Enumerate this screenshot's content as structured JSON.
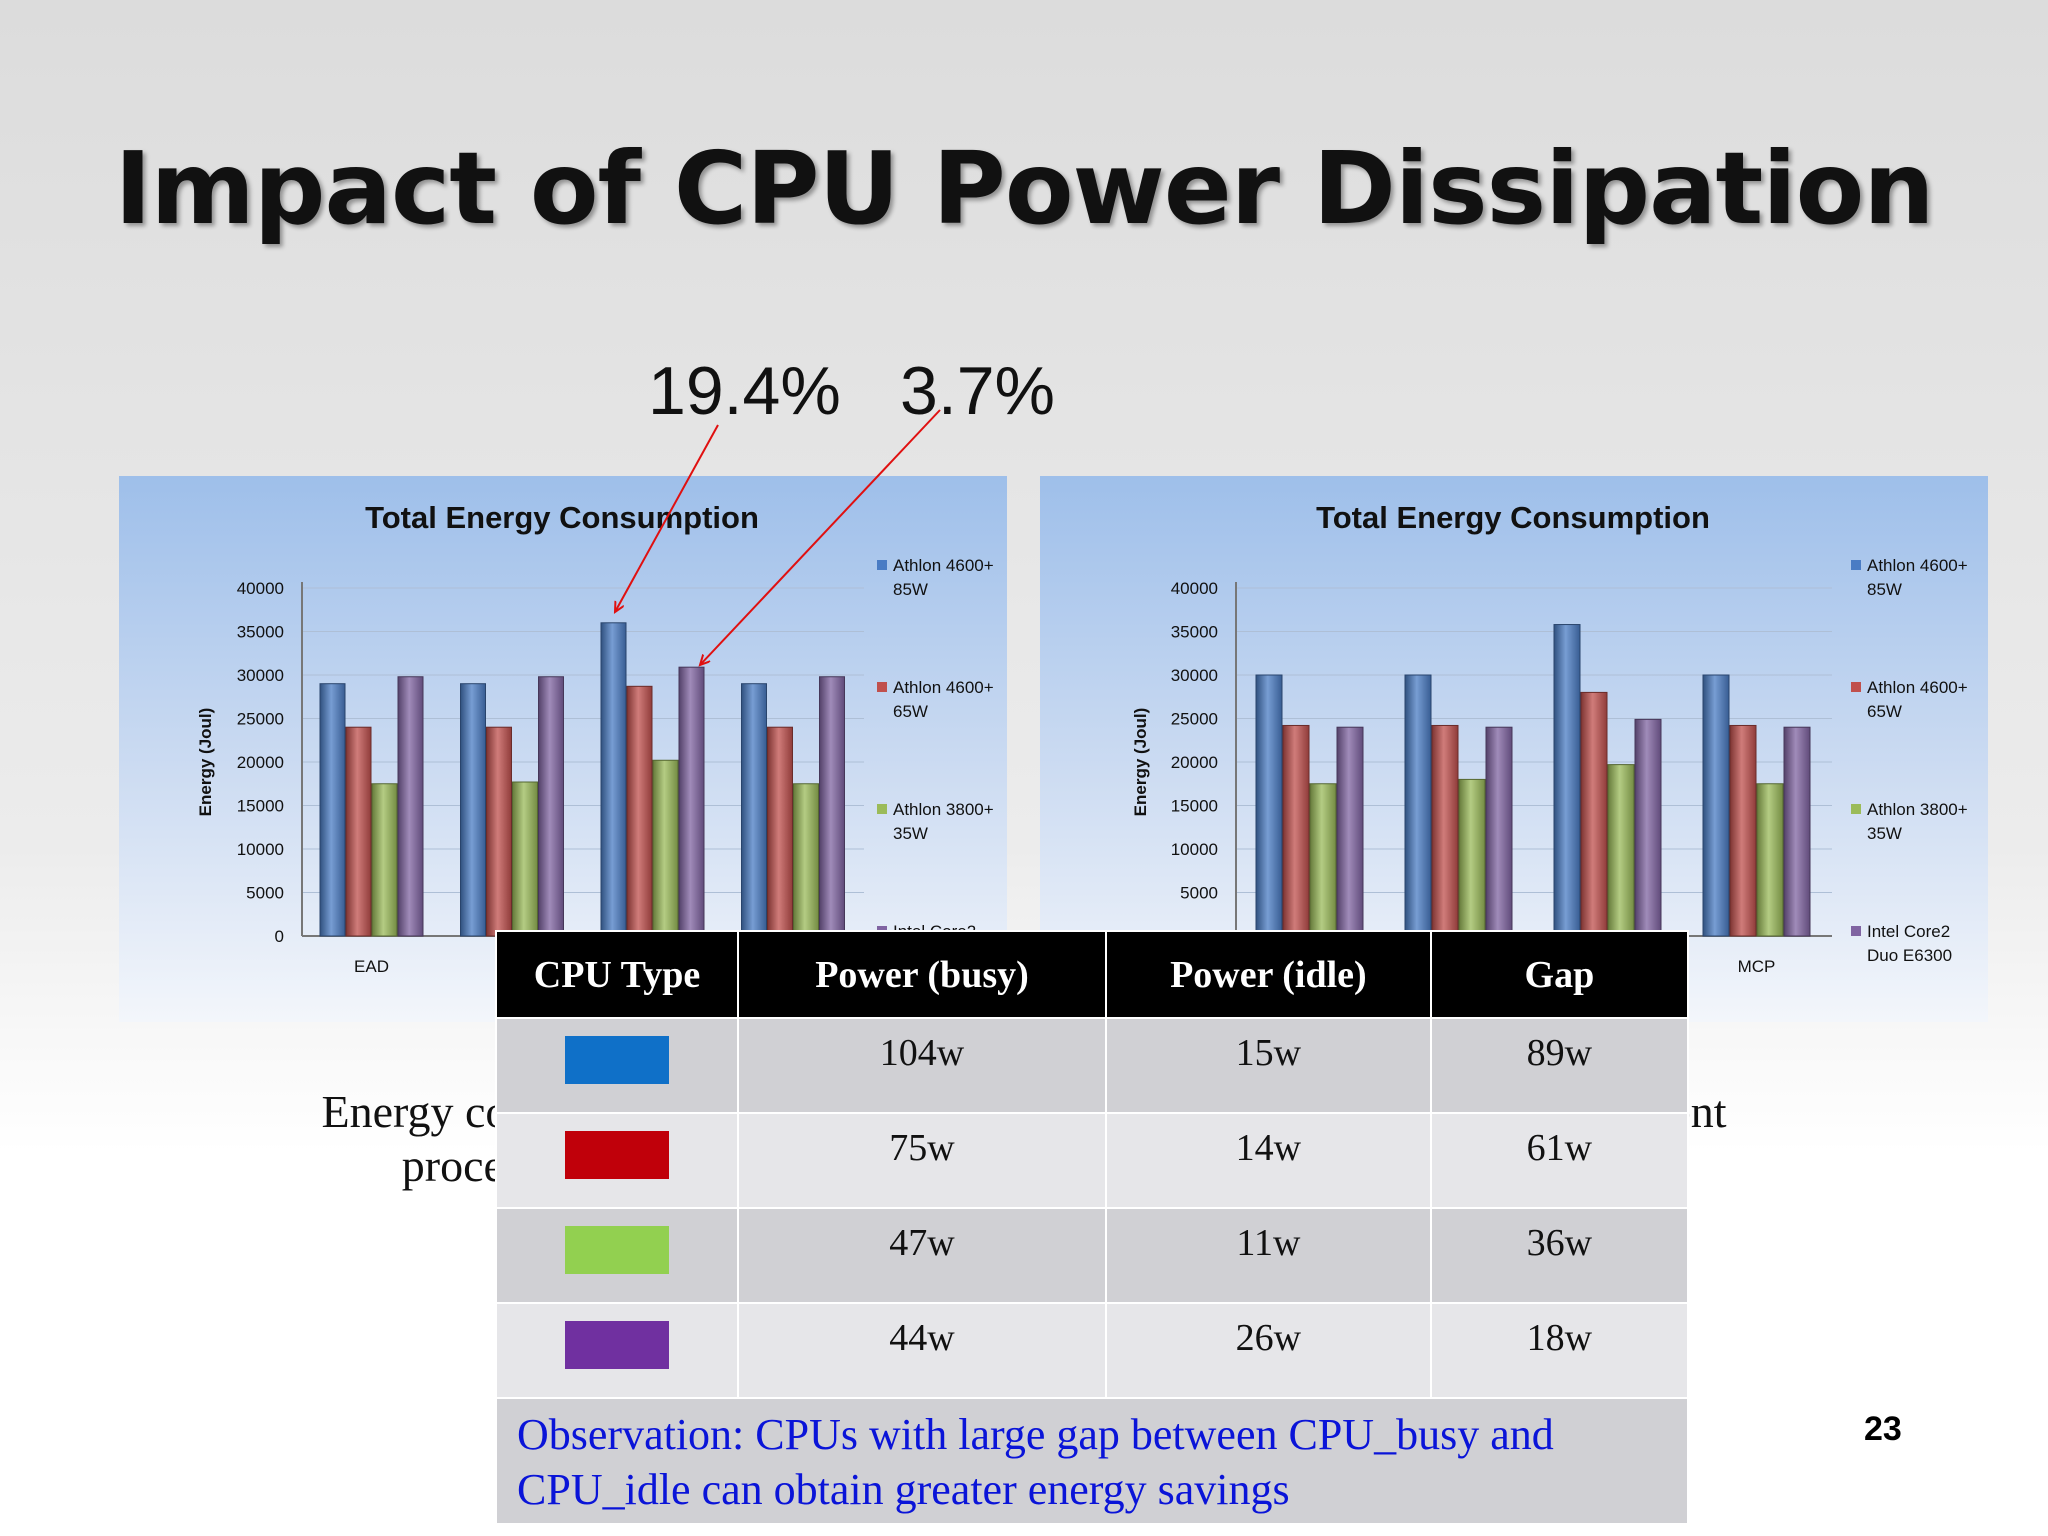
{
  "slide": {
    "title": "Impact of CPU Power Dissipation",
    "annotation_left": "19.4%",
    "annotation_right": "3.7%",
    "caption_line1": "Energy consumption of                                                                       different",
    "caption_line2": "processors (Ga                                                                                .4)",
    "page_number": "23"
  },
  "chart_data": [
    {
      "type": "bar",
      "title": "Total Energy Consumption",
      "ylabel": "Energy (Joul)",
      "ylim": [
        0,
        40000
      ],
      "yticks": [
        0,
        5000,
        10000,
        15000,
        20000,
        25000,
        30000,
        35000,
        40000
      ],
      "categories": [
        "EAD",
        "",
        "",
        ""
      ],
      "series": [
        {
          "name": "Athlon 4600+ 85W",
          "color": "#4a7cc4",
          "values": [
            29000,
            29000,
            36000,
            29000
          ]
        },
        {
          "name": "Athlon 4600+ 65W",
          "color": "#c0504d",
          "values": [
            24000,
            24000,
            28700,
            24000
          ]
        },
        {
          "name": "Athlon 3800+ 35W",
          "color": "#9bbb59",
          "values": [
            17500,
            17700,
            20200,
            17500
          ]
        },
        {
          "name": "Intel Core2 Duo E6300",
          "color": "#8064a2",
          "values": [
            29800,
            29800,
            30900,
            29800
          ]
        }
      ]
    },
    {
      "type": "bar",
      "title": "Total Energy Consumption",
      "ylabel": "Energy (Joul)",
      "ylim": [
        0,
        40000
      ],
      "yticks": [
        5000,
        10000,
        15000,
        20000,
        25000,
        30000,
        35000,
        40000
      ],
      "categories": [
        "",
        "",
        "",
        "MCP"
      ],
      "series": [
        {
          "name": "Athlon 4600+ 85W",
          "color": "#4a7cc4",
          "values": [
            30000,
            30000,
            35800,
            30000
          ]
        },
        {
          "name": "Athlon 4600+ 65W",
          "color": "#c0504d",
          "values": [
            24200,
            24200,
            28000,
            24200
          ]
        },
        {
          "name": "Athlon 3800+ 35W",
          "color": "#9bbb59",
          "values": [
            17500,
            18000,
            19700,
            17500
          ]
        },
        {
          "name": "Intel Core2 Duo E6300",
          "color": "#8064a2",
          "values": [
            24000,
            24000,
            24900,
            24000
          ]
        }
      ]
    }
  ],
  "legend_labels": [
    [
      "Athlon 4600+",
      "85W"
    ],
    [
      "Athlon 4600+",
      "65W"
    ],
    [
      "Athlon 3800+",
      "35W"
    ],
    [
      "Intel Core2",
      "Duo E6300"
    ]
  ],
  "table": {
    "headers": [
      "CPU Type",
      "Power  (busy)",
      "Power (idle)",
      "Gap"
    ],
    "rows": [
      {
        "color": "#0f70c8",
        "busy": "104w",
        "idle": "15w",
        "gap": "89w"
      },
      {
        "color": "#c0000a",
        "busy": "75w",
        "idle": "14w",
        "gap": "61w"
      },
      {
        "color": "#92d050",
        "busy": "47w",
        "idle": "11w",
        "gap": "36w"
      },
      {
        "color": "#7030a0",
        "busy": "44w",
        "idle": "26w",
        "gap": "18w"
      }
    ],
    "observation": "Observation: CPUs with large gap between CPU_busy and CPU_idle can obtain greater energy savings"
  }
}
